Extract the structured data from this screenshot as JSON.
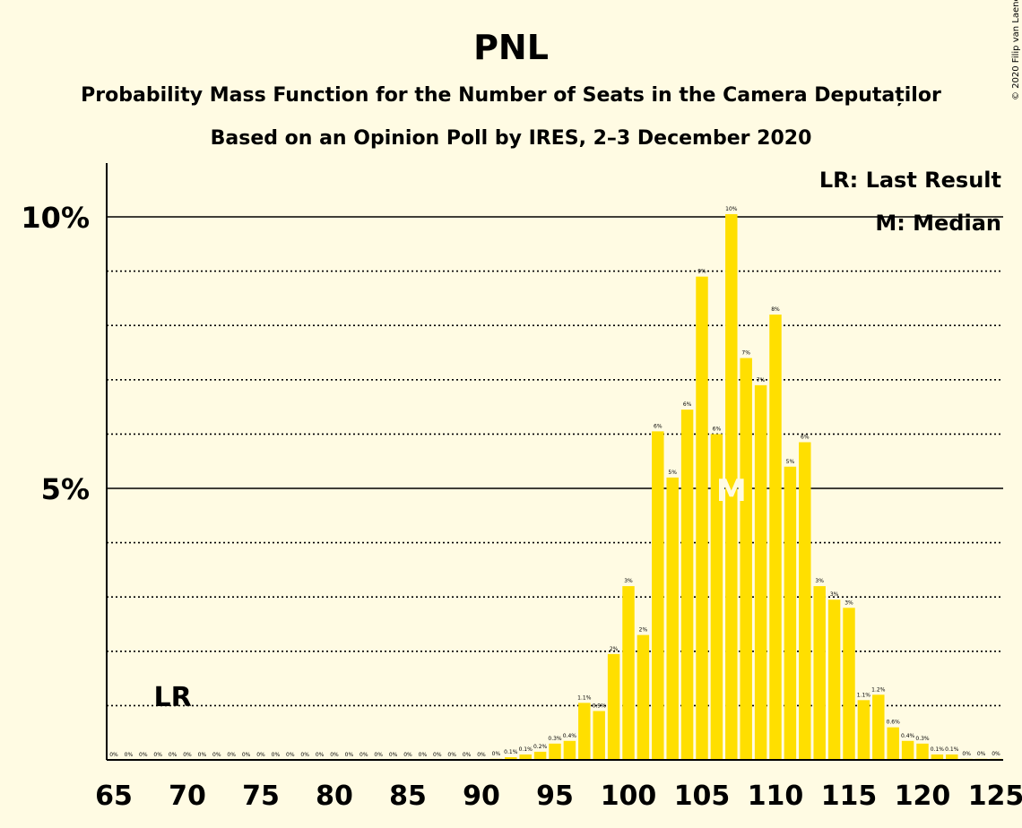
{
  "chart_data": {
    "type": "bar",
    "title": "PNL",
    "subtitle_1": "Probability Mass Function for the Number of Seats in the Camera Deputaților",
    "subtitle_2": "Based on an Opinion Poll by IRES, 2–3 December 2020",
    "copyright": "© 2020 Filip van Laenen",
    "legend": {
      "last_result": "LR: Last Result",
      "median": "M: Median",
      "placement": "top-right"
    },
    "markers": {
      "last_result": {
        "label": "LR",
        "x": 69
      },
      "median": {
        "label": "M",
        "x": 107
      }
    },
    "bar_color": "#ffdf00",
    "xlim": [
      65,
      125
    ],
    "ylim": [
      0,
      11
    ],
    "x_ticks": [
      65,
      70,
      75,
      80,
      85,
      90,
      95,
      100,
      105,
      110,
      115,
      120,
      125
    ],
    "y_ticks": [
      {
        "value": 5,
        "label": "5%"
      },
      {
        "value": 10,
        "label": "10%"
      }
    ],
    "x": [
      65,
      66,
      67,
      68,
      69,
      70,
      71,
      72,
      73,
      74,
      75,
      76,
      77,
      78,
      79,
      80,
      81,
      82,
      83,
      84,
      85,
      86,
      87,
      88,
      89,
      90,
      91,
      92,
      93,
      94,
      95,
      96,
      97,
      98,
      99,
      100,
      101,
      102,
      103,
      104,
      105,
      106,
      107,
      108,
      109,
      110,
      111,
      112,
      113,
      114,
      115,
      116,
      117,
      118,
      119,
      120,
      121,
      122,
      123,
      124,
      125
    ],
    "values": [
      0,
      0,
      0,
      0,
      0,
      0,
      0,
      0,
      0,
      0,
      0,
      0,
      0,
      0,
      0,
      0,
      0,
      0,
      0,
      0,
      0,
      0,
      0,
      0,
      0,
      0,
      0.02,
      0.05,
      0.1,
      0.15,
      0.3,
      0.35,
      1.05,
      0.9,
      1.95,
      3.2,
      2.3,
      6.05,
      5.2,
      6.45,
      8.9,
      6.0,
      10.05,
      7.4,
      6.9,
      8.2,
      5.4,
      5.85,
      3.2,
      2.95,
      2.8,
      1.1,
      1.2,
      0.6,
      0.35,
      0.3,
      0.1,
      0.1,
      0.02,
      0.02,
      0.02
    ],
    "labels": [
      "0%",
      "0%",
      "0%",
      "0%",
      "0%",
      "0%",
      "0%",
      "0%",
      "0%",
      "0%",
      "0%",
      "0%",
      "0%",
      "0%",
      "0%",
      "0%",
      "0%",
      "0%",
      "0%",
      "0%",
      "0%",
      "0%",
      "0%",
      "0%",
      "0%",
      "0%",
      "0%",
      "0.1%",
      "0.1%",
      "0.2%",
      "0.3%",
      "0.4%",
      "1.1%",
      "0.9%",
      "2%",
      "3%",
      "2%",
      "6%",
      "5%",
      "6%",
      "9%",
      "6%",
      "10%",
      "7%",
      "7%",
      "8%",
      "5%",
      "6%",
      "3%",
      "3%",
      "3%",
      "1.1%",
      "1.2%",
      "0.6%",
      "0.4%",
      "0.3%",
      "0.1%",
      "0.1%",
      "0%",
      "0%",
      "0%"
    ]
  }
}
